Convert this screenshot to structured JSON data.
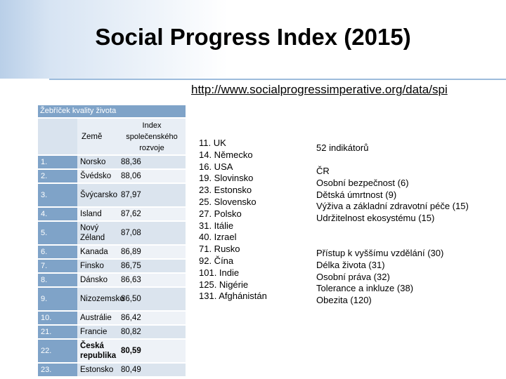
{
  "title": "Social Progress Index (2015)",
  "url": "http://www.socialprogressimperative.org/data/spi",
  "table": {
    "caption": "Žebříček kvality života",
    "header_country": "Země",
    "header_index": "Index společenského rozvoje",
    "rows": [
      {
        "rank": "1.",
        "country": "Norsko",
        "index": "88,36"
      },
      {
        "rank": "2.",
        "country": "Švédsko",
        "index": "88,06"
      },
      {
        "rank": "3.",
        "country": "Švýcarsko",
        "index": "87,97"
      },
      {
        "rank": "4.",
        "country": "Island",
        "index": "87,62"
      },
      {
        "rank": "5.",
        "country": "Nový Zéland",
        "index": "87,08"
      },
      {
        "rank": "6.",
        "country": "Kanada",
        "index": "86,89"
      },
      {
        "rank": "7.",
        "country": "Finsko",
        "index": "86,75"
      },
      {
        "rank": "8.",
        "country": "Dánsko",
        "index": "86,63"
      },
      {
        "rank": "9.",
        "country": "Nizozemsko",
        "index": "86,50"
      },
      {
        "rank": "10.",
        "country": "Austrálie",
        "index": "86,42"
      },
      {
        "rank": "21.",
        "country": "Francie",
        "index": "80,82"
      },
      {
        "rank": "22.",
        "country": "Česká republika",
        "index": "80,59"
      },
      {
        "rank": "23.",
        "country": "Estonsko",
        "index": "80,49"
      }
    ]
  },
  "ranking_list": [
    "11. UK",
    "14. Německo",
    "16. USA",
    "19. Slovinsko",
    "23. Estonsko",
    "25. Slovensko",
    "27. Polsko",
    "31. Itálie",
    "40. Izrael",
    "71. Rusko",
    "92. Čína",
    "101. Indie",
    "125. Nigérie",
    "131. Afghánistán"
  ],
  "indicators": "52 indikátorů",
  "cr_block": [
    "ČR",
    "Osobní bezpečnost (6)",
    "Dětská úmrtnost (9)",
    "Výživa a základní zdravotní péče (15)",
    "Udržitelnost ekosystému (15)"
  ],
  "weak_block": [
    "Přístup k vyššímu vzdělání (30)",
    "Délka života (31)",
    "Osobní práva (32)",
    "Tolerance a inkluze (38)",
    "Obezita (120)"
  ]
}
